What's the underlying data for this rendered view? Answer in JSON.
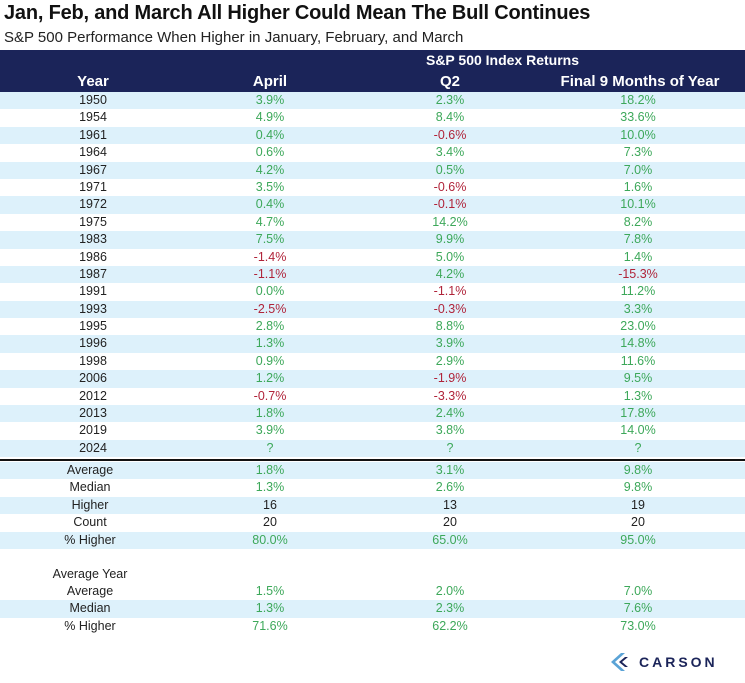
{
  "title": "Jan, Feb, and March All Higher Could Mean The Bull Continues",
  "subtitle": "S&P 500 Performance When Higher in January, February, and March",
  "header": {
    "group_label": "S&P 500 Index Returns",
    "columns": [
      "Year",
      "April",
      "Q2",
      "Final 9 Months of Year"
    ]
  },
  "chart_data": {
    "type": "table",
    "title": "Jan, Feb, and March All Higher Could Mean The Bull Continues",
    "subtitle": "S&P 500 Performance When Higher in January, February, and March",
    "group_header": "S&P 500 Index Returns",
    "columns": [
      "Year",
      "April",
      "Q2",
      "Final 9 Months of Year"
    ],
    "rows": [
      [
        "1950",
        "3.9%",
        "2.3%",
        "18.2%"
      ],
      [
        "1954",
        "4.9%",
        "8.4%",
        "33.6%"
      ],
      [
        "1961",
        "0.4%",
        "-0.6%",
        "10.0%"
      ],
      [
        "1964",
        "0.6%",
        "3.4%",
        "7.3%"
      ],
      [
        "1967",
        "4.2%",
        "0.5%",
        "7.0%"
      ],
      [
        "1971",
        "3.5%",
        "-0.6%",
        "1.6%"
      ],
      [
        "1972",
        "0.4%",
        "-0.1%",
        "10.1%"
      ],
      [
        "1975",
        "4.7%",
        "14.2%",
        "8.2%"
      ],
      [
        "1983",
        "7.5%",
        "9.9%",
        "7.8%"
      ],
      [
        "1986",
        "-1.4%",
        "5.0%",
        "1.4%"
      ],
      [
        "1987",
        "-1.1%",
        "4.2%",
        "-15.3%"
      ],
      [
        "1991",
        "0.0%",
        "-1.1%",
        "11.2%"
      ],
      [
        "1993",
        "-2.5%",
        "-0.3%",
        "3.3%"
      ],
      [
        "1995",
        "2.8%",
        "8.8%",
        "23.0%"
      ],
      [
        "1996",
        "1.3%",
        "3.9%",
        "14.8%"
      ],
      [
        "1998",
        "0.9%",
        "2.9%",
        "11.6%"
      ],
      [
        "2006",
        "1.2%",
        "-1.9%",
        "9.5%"
      ],
      [
        "2012",
        "-0.7%",
        "-3.3%",
        "1.3%"
      ],
      [
        "2013",
        "1.8%",
        "2.4%",
        "17.8%"
      ],
      [
        "2019",
        "3.9%",
        "3.8%",
        "14.0%"
      ],
      [
        "2024",
        "?",
        "?",
        "?"
      ]
    ],
    "summary": [
      [
        "Average",
        "1.8%",
        "3.1%",
        "9.8%"
      ],
      [
        "Median",
        "1.3%",
        "2.6%",
        "9.8%"
      ],
      [
        "Higher",
        "16",
        "13",
        "19"
      ],
      [
        "Count",
        "20",
        "20",
        "20"
      ],
      [
        "% Higher",
        "80.0%",
        "65.0%",
        "95.0%"
      ]
    ],
    "average_year_label": "Average Year",
    "average_year": [
      [
        "Average",
        "1.5%",
        "2.0%",
        "7.0%"
      ],
      [
        "Median",
        "1.3%",
        "2.3%",
        "7.6%"
      ],
      [
        "% Higher",
        "71.6%",
        "62.2%",
        "73.0%"
      ]
    ],
    "colors": {
      "header_bg": "#1b2459",
      "stripe": "#ddf1fb",
      "positive": "#3da85a",
      "negative": "#b0243a"
    }
  },
  "logo": {
    "text": "CARSON"
  }
}
